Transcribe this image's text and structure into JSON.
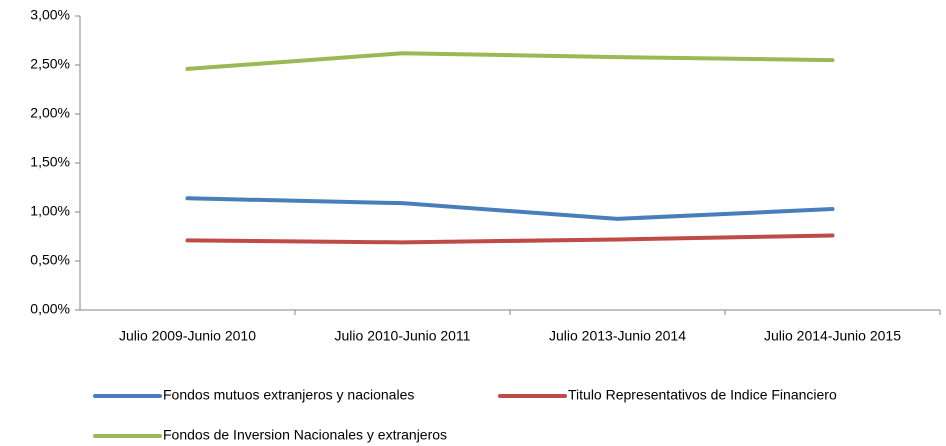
{
  "chart_data": {
    "type": "line",
    "categories": [
      "Julio 2009-Junio 2010",
      "Julio 2010-Junio 2011",
      "Julio 2013-Junio 2014",
      "Julio 2014-Junio 2015"
    ],
    "series": [
      {
        "name": "Fondos mutuos extranjeros y nacionales",
        "color": "#4a7ebb",
        "values": [
          1.14,
          1.09,
          0.93,
          1.03
        ]
      },
      {
        "name": "Titulo Representativos de Indice Financiero",
        "color": "#be4b48",
        "values": [
          0.71,
          0.69,
          0.72,
          0.76
        ]
      },
      {
        "name": "Fondos de Inversion Nacionales y extranjeros",
        "color": "#98b954",
        "values": [
          2.46,
          2.62,
          2.58,
          2.55
        ]
      }
    ],
    "ylim": [
      0,
      3
    ],
    "yticks": [
      {
        "value": 0,
        "label": "0,00%"
      },
      {
        "value": 0.5,
        "label": "0,50%"
      },
      {
        "value": 1,
        "label": "1,00%"
      },
      {
        "value": 1.5,
        "label": "1,50%"
      },
      {
        "value": 2,
        "label": "2,00%"
      },
      {
        "value": 2.5,
        "label": "2,50%"
      },
      {
        "value": 3,
        "label": "3,00%"
      }
    ],
    "grid": false,
    "legend": "bottom"
  }
}
